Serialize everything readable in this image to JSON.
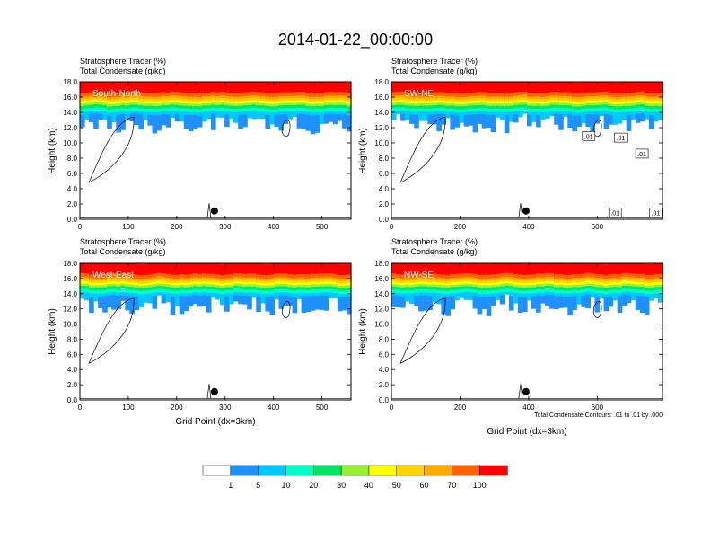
{
  "figure_title": "2014-01-22_00:00:00",
  "colors": {
    "levels": [
      "#ffffff",
      "#1e90ff",
      "#00c8ff",
      "#00ffc8",
      "#00e664",
      "#96f032",
      "#ffff00",
      "#ffd200",
      "#ffaa00",
      "#ff6400",
      "#ff0000"
    ]
  },
  "chart_data": [
    {
      "type": "heatmap",
      "panel_label": "South-North",
      "title_line1": "Stratosphere Tracer   (%)",
      "title_line2": "Total Condensate   (g/kg)",
      "ylabel": "Height (km)",
      "xlabel": "",
      "xlim": [
        0,
        560
      ],
      "ylim": [
        0,
        18
      ],
      "xticks": [
        "0",
        "100",
        "200",
        "300",
        "400",
        "500"
      ],
      "yticks": [
        "0.0",
        "2.0",
        "4.0",
        "6.0",
        "8.0",
        "10.0",
        "12.0",
        "14.0",
        "16.0",
        "18.0"
      ],
      "contour_labels": [],
      "marker": {
        "x": 278,
        "y": 1.1
      }
    },
    {
      "type": "heatmap",
      "panel_label": "SW-NE",
      "title_line1": "Stratosphere Tracer   (%)",
      "title_line2": "Total Condensate   (g/kg)",
      "ylabel": "Height (km)",
      "xlabel": "",
      "xlim": [
        0,
        790
      ],
      "ylim": [
        0,
        18
      ],
      "xticks": [
        "0",
        "200",
        "400",
        "600"
      ],
      "yticks": [
        "0.0",
        "2.0",
        "4.0",
        "6.0",
        "8.0",
        "10.0",
        "12.0",
        "14.0",
        "16.0",
        "18.0"
      ],
      "contour_labels": [
        {
          "text": ".01",
          "x": 575,
          "y": 10.9
        },
        {
          "text": ".01",
          "x": 668,
          "y": 10.7
        },
        {
          "text": ".01",
          "x": 730,
          "y": 8.6
        },
        {
          "text": ".01",
          "x": 652,
          "y": 0.9
        },
        {
          "text": ".01",
          "x": 770,
          "y": 0.9
        }
      ],
      "marker": {
        "x": 392,
        "y": 1.1
      }
    },
    {
      "type": "heatmap",
      "panel_label": "West-East",
      "title_line1": "Stratosphere Tracer   (%)",
      "title_line2": "Total Condensate   (g/kg)",
      "ylabel": "Height (km)",
      "xlabel": "Grid Point (dx=3km)",
      "xlim": [
        0,
        560
      ],
      "ylim": [
        0,
        18
      ],
      "xticks": [
        "0",
        "100",
        "200",
        "300",
        "400",
        "500"
      ],
      "yticks": [
        "0.0",
        "2.0",
        "4.0",
        "6.0",
        "8.0",
        "10.0",
        "12.0",
        "14.0",
        "16.0",
        "18.0"
      ],
      "contour_labels": [],
      "marker": {
        "x": 278,
        "y": 1.1
      }
    },
    {
      "type": "heatmap",
      "panel_label": "NW-SE",
      "title_line1": "Stratosphere Tracer   (%)",
      "title_line2": "Total Condensate   (g/kg)",
      "ylabel": "Height (km)",
      "xlabel": "Grid Point (dx=3km)",
      "xlim": [
        0,
        790
      ],
      "ylim": [
        0,
        18
      ],
      "xticks": [
        "0",
        "200",
        "400",
        "600"
      ],
      "yticks": [
        "0.0",
        "2.0",
        "4.0",
        "6.0",
        "8.0",
        "10.0",
        "12.0",
        "14.0",
        "16.0",
        "18.0"
      ],
      "contour_labels": [],
      "marker": {
        "x": 392,
        "y": 1.1
      },
      "footnote": "Total Condensate Contours: .01 to .01 by .000"
    }
  ],
  "colorbar": {
    "labels": [
      "1",
      "5",
      "10",
      "20",
      "30",
      "40",
      "50",
      "60",
      "70",
      "100"
    ]
  }
}
